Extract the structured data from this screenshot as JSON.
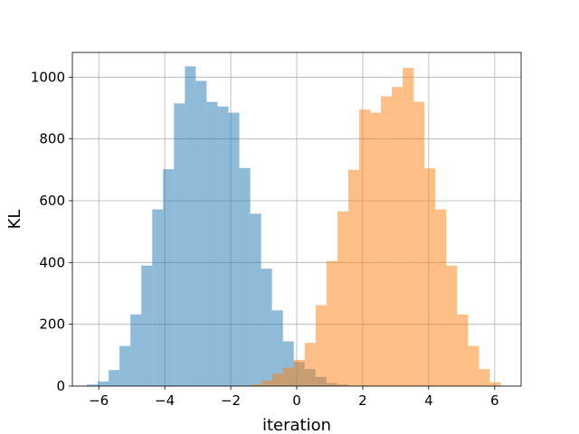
{
  "chart_data": {
    "type": "bar",
    "subtype": "histogram",
    "title": "",
    "xlabel": "iteration",
    "ylabel": "KL",
    "xlim": [
      -6.8,
      6.8
    ],
    "ylim": [
      0,
      1080
    ],
    "xticks": [
      -6,
      -4,
      -2,
      0,
      2,
      4,
      6
    ],
    "xtick_labels": [
      "−6",
      "−4",
      "−2",
      "0",
      "2",
      "4",
      "6"
    ],
    "yticks": [
      0,
      200,
      400,
      600,
      800,
      1000
    ],
    "ytick_labels": [
      "0",
      "200",
      "400",
      "600",
      "800",
      "1000"
    ],
    "grid": true,
    "legend": "none",
    "series": [
      {
        "color": "#1f77b4",
        "alpha": 0.5,
        "bin_edges": [
          -6.36,
          -6.03,
          -5.7,
          -5.37,
          -5.04,
          -4.71,
          -4.38,
          -4.05,
          -3.72,
          -3.39,
          -3.06,
          -2.73,
          -2.4,
          -2.07,
          -1.74,
          -1.41,
          -1.08,
          -0.75,
          -0.42,
          -0.09,
          0.24,
          0.57,
          0.9,
          1.23,
          1.56,
          1.89
        ],
        "counts": [
          5,
          15,
          52,
          130,
          232,
          390,
          572,
          702,
          915,
          1035,
          988,
          920,
          905,
          885,
          706,
          558,
          380,
          245,
          145,
          78,
          55,
          30,
          10,
          5,
          1
        ]
      },
      {
        "color": "#ff7f0e",
        "alpha": 0.5,
        "bin_edges": [
          -1.41,
          -1.08,
          -0.75,
          -0.42,
          -0.09,
          0.24,
          0.57,
          0.9,
          1.23,
          1.56,
          1.89,
          2.22,
          2.55,
          2.88,
          3.21,
          3.54,
          3.87,
          4.2,
          4.53,
          4.86,
          5.19,
          5.52,
          5.85,
          6.18
        ],
        "counts": [
          5,
          18,
          40,
          60,
          85,
          140,
          262,
          405,
          565,
          700,
          895,
          885,
          938,
          968,
          1030,
          920,
          705,
          572,
          390,
          232,
          130,
          55,
          12
        ]
      }
    ]
  }
}
